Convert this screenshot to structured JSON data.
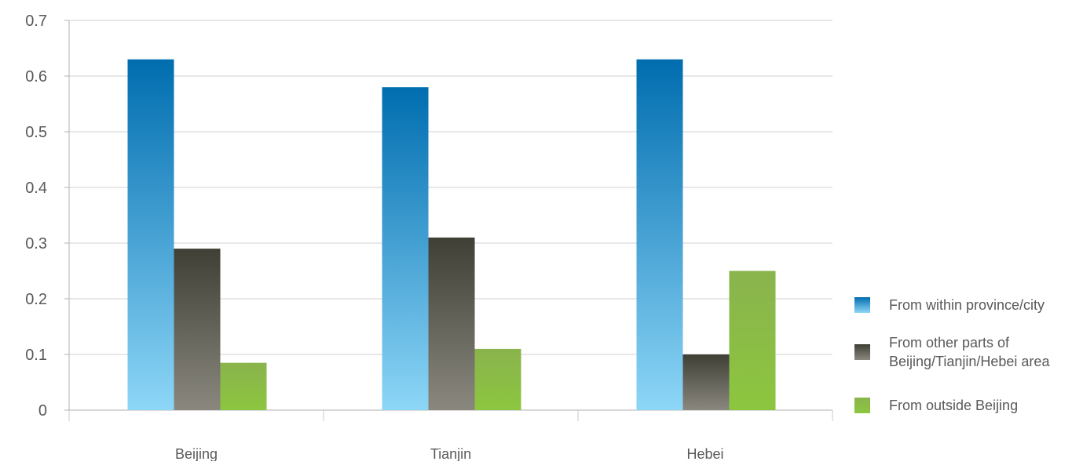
{
  "chart_data": {
    "type": "bar",
    "title": "",
    "xlabel": "",
    "ylabel": "",
    "categories": [
      "Beijing",
      "Tianjin",
      "Hebei"
    ],
    "yticks": [
      "0",
      "0.1",
      "0.2",
      "0.3",
      "0.4",
      "0.5",
      "0.6",
      "0.7"
    ],
    "ylim": [
      0,
      0.7
    ],
    "grid": true,
    "legend_position": "right",
    "series": [
      {
        "name": "From within province/city",
        "values": [
          0.63,
          0.58,
          0.63
        ],
        "color_top": "#006daf",
        "color_bottom": "#8dd6f7"
      },
      {
        "name": "From other parts of Beijing/Tianjin/Hebei area",
        "values": [
          0.29,
          0.31,
          0.1
        ],
        "color_top": "#3f3f36",
        "color_bottom": "#8a887e"
      },
      {
        "name": "From outside Beijing",
        "values": [
          0.085,
          0.11,
          0.25
        ],
        "color_top": "#8ab34d",
        "color_bottom": "#8cc63f"
      }
    ]
  }
}
